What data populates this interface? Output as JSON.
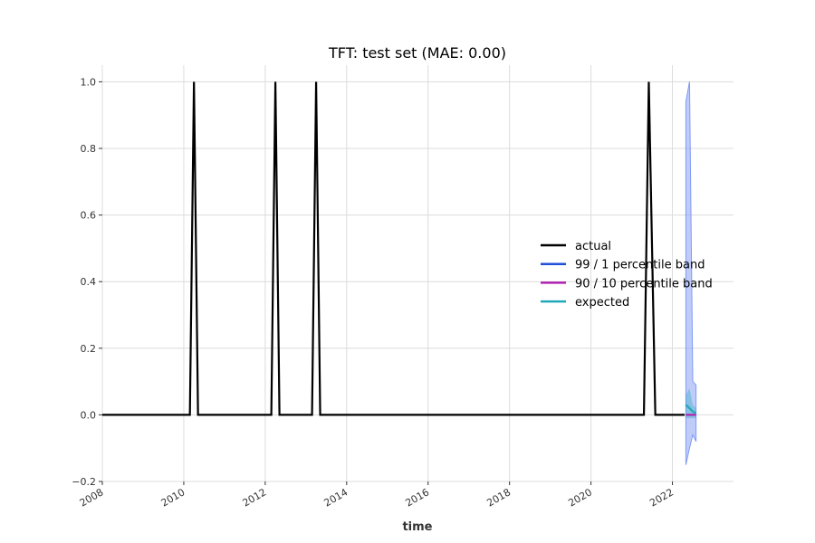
{
  "chart_data": {
    "type": "line",
    "title": "TFT: test set (MAE: 0.00)",
    "xlabel": "time",
    "ylabel": "",
    "x_axis": {
      "min": 2008.0,
      "max": 2023.5,
      "ticks": [
        2008,
        2010,
        2012,
        2014,
        2016,
        2018,
        2020,
        2022
      ],
      "tick_labels": [
        "2008",
        "2010",
        "2012",
        "2014",
        "2016",
        "2018",
        "2020",
        "2022"
      ]
    },
    "y_axis": {
      "min": -0.2,
      "max": 1.05,
      "ticks": [
        -0.2,
        0.0,
        0.2,
        0.4,
        0.6,
        0.8,
        1.0
      ],
      "tick_labels": [
        "−0.2",
        "0.0",
        "0.2",
        "0.4",
        "0.6",
        "0.8",
        "1.0"
      ]
    },
    "grid": true,
    "legend_position": "center-right",
    "legend": [
      "actual",
      "99 / 1 percentile band",
      "90 / 10 percentile band",
      "expected"
    ],
    "colors": {
      "actual": "#000000",
      "band99": "#1f4fd8",
      "band90": "#b020b0",
      "expected": "#20a8b8",
      "band99_fill": "#7f9af5",
      "grid": "#dcdcdc"
    },
    "series": [
      {
        "name": "actual",
        "x": [
          2008.0,
          2010.15,
          2010.25,
          2010.35,
          2012.15,
          2012.25,
          2012.35,
          2013.15,
          2013.25,
          2013.35,
          2021.3,
          2021.42,
          2021.58,
          2022.3
        ],
        "y": [
          0,
          0,
          1,
          0,
          0,
          1,
          0,
          0,
          1,
          0,
          0,
          1,
          0,
          0
        ]
      },
      {
        "name": "expected",
        "x": [
          2022.33,
          2022.42,
          2022.5,
          2022.58
        ],
        "y": [
          0.03,
          0.02,
          0.01,
          0.005
        ]
      },
      {
        "name": "90 / 10 percentile band",
        "x": [
          2022.33,
          2022.42,
          2022.5,
          2022.58
        ],
        "y": [
          0.0,
          0.0,
          0.0,
          0.0
        ],
        "upper": [
          0.06,
          0.08,
          0.03,
          0.02
        ],
        "lower": [
          -0.01,
          -0.01,
          -0.01,
          -0.01
        ]
      },
      {
        "name": "99 / 1 percentile band",
        "x": [
          2022.33,
          2022.42,
          2022.5,
          2022.58
        ],
        "upper": [
          0.94,
          1.0,
          0.1,
          0.09
        ],
        "lower": [
          -0.15,
          -0.1,
          -0.06,
          -0.08
        ]
      }
    ]
  }
}
